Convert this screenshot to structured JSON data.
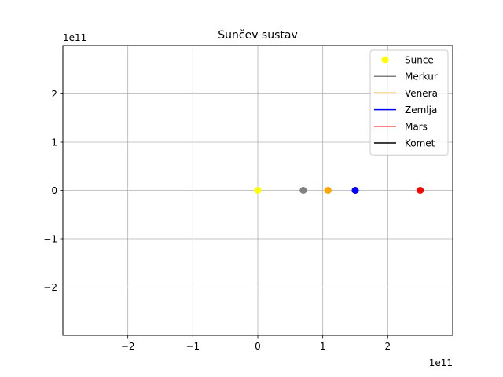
{
  "chart_data": {
    "type": "scatter",
    "title": "Sunčev sustav",
    "xlabel": "",
    "ylabel": "",
    "x_offset_label": "1e11",
    "y_offset_label": "1e11",
    "xlim": [
      -3.0,
      3.0
    ],
    "ylim": [
      -3.0,
      3.0
    ],
    "xticks": [
      -2,
      -1,
      0,
      1,
      2
    ],
    "yticks": [
      -2,
      -1,
      0,
      1,
      2
    ],
    "xtick_labels": [
      "−2",
      "−1",
      "0",
      "1",
      "2"
    ],
    "ytick_labels": [
      "−2",
      "−1",
      "0",
      "1",
      "2"
    ],
    "grid": true,
    "legend_placement": "upper right",
    "series": [
      {
        "name": "Sunce",
        "marker": "dot",
        "color": "#ffff00",
        "points": [
          [
            0.0,
            0.0
          ]
        ]
      },
      {
        "name": "Merkur",
        "marker": "line",
        "color": "#808080",
        "points": [
          [
            0.7,
            0.0
          ]
        ]
      },
      {
        "name": "Venera",
        "marker": "line",
        "color": "#ffa500",
        "points": [
          [
            1.08,
            0.0
          ]
        ]
      },
      {
        "name": "Zemlja",
        "marker": "line",
        "color": "#0000ff",
        "points": [
          [
            1.5,
            0.0
          ]
        ]
      },
      {
        "name": "Mars",
        "marker": "line",
        "color": "#ff0000",
        "points": [
          [
            2.5,
            0.0
          ]
        ]
      },
      {
        "name": "Komet",
        "marker": "line",
        "color": "#000000",
        "points": []
      }
    ]
  }
}
